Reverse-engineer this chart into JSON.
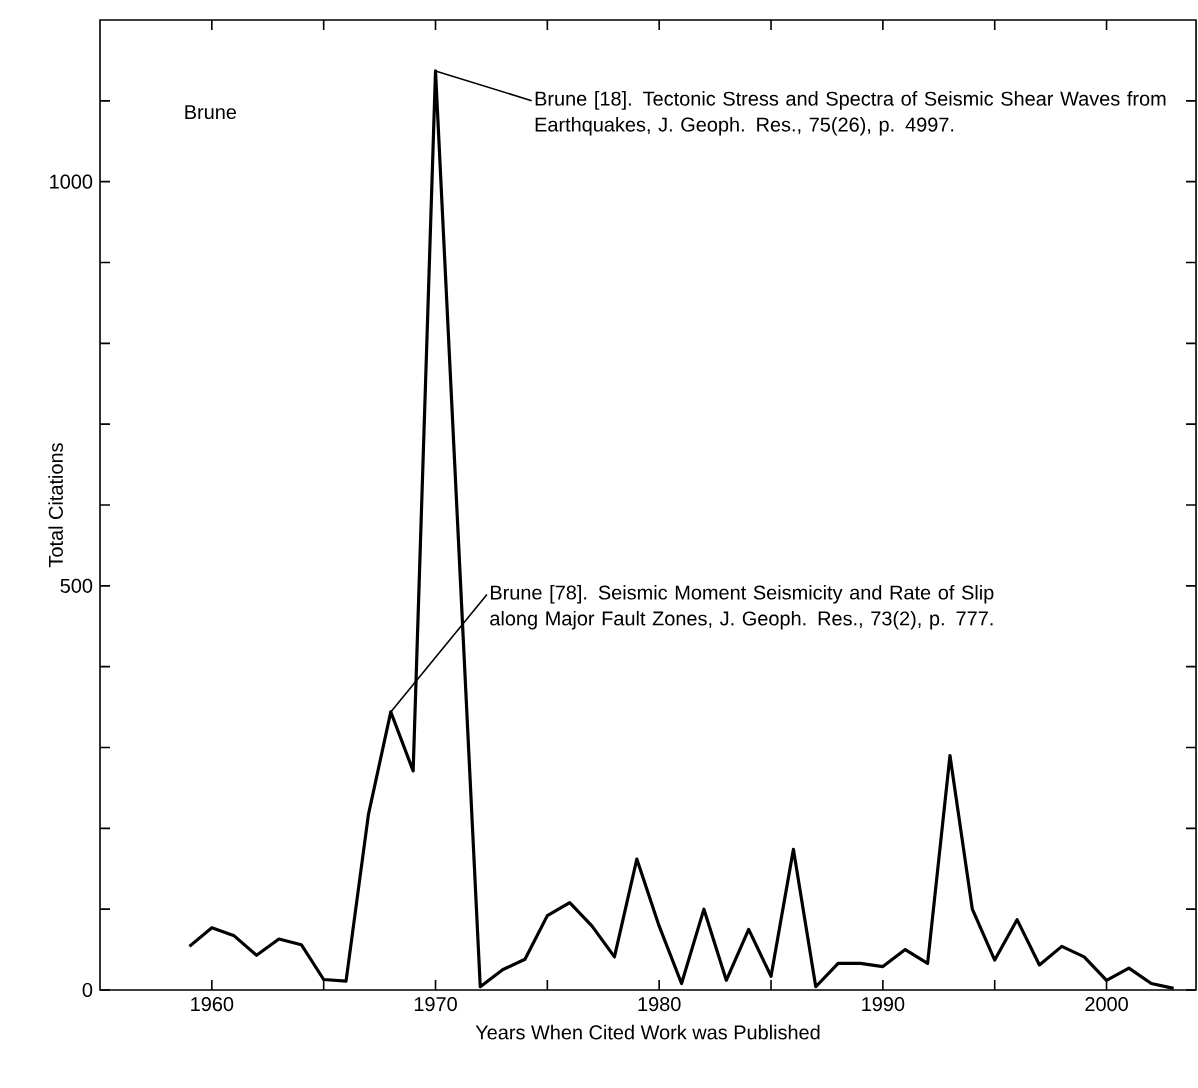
{
  "chart_data": {
    "type": "line",
    "xlabel": "Years When Cited Work was Published",
    "ylabel": "Total Citations",
    "x": [
      1959,
      1960,
      1961,
      1962,
      1963,
      1964,
      1965,
      1966,
      1967,
      1968,
      1969,
      1970,
      1972,
      1973,
      1974,
      1975,
      1976,
      1977,
      1978,
      1979,
      1980,
      1981,
      1982,
      1983,
      1984,
      1985,
      1986,
      1987,
      1988,
      1989,
      1990,
      1991,
      1992,
      1993,
      1994,
      1995,
      1996,
      1997,
      1998,
      1999,
      2000,
      2001,
      2002,
      2003
    ],
    "values": [
      54,
      77,
      67,
      43,
      63,
      56,
      13,
      11,
      217,
      344,
      271,
      1137,
      4,
      25,
      38,
      92,
      108,
      79,
      41,
      162,
      79,
      8,
      100,
      12,
      75,
      17,
      174,
      4,
      33,
      33,
      29,
      50,
      33,
      290,
      100,
      37,
      87,
      31,
      54,
      41,
      12,
      27,
      8,
      2
    ],
    "color": "#000000",
    "marker": "none",
    "line_style": "solid",
    "grid": false,
    "xlim": [
      1955,
      2004
    ],
    "ylim": [
      0,
      1200
    ],
    "xticks": [
      1960,
      {
        "value": 1965,
        "label": null
      },
      1970,
      {
        "value": 1975,
        "label": null
      },
      1980,
      {
        "value": 1985,
        "label": null
      },
      1990,
      {
        "value": 1995,
        "label": null
      },
      2000
    ],
    "yticks": [
      0,
      {
        "value": 100,
        "label": null
      },
      {
        "value": 200,
        "label": null
      },
      {
        "value": 300,
        "label": null
      },
      {
        "value": 400,
        "label": null
      },
      500,
      {
        "value": 600,
        "label": null
      },
      {
        "value": 700,
        "label": null
      },
      {
        "value": 800,
        "label": null
      },
      {
        "value": 900,
        "label": null
      },
      1000,
      {
        "value": 1100,
        "label": null
      }
    ],
    "annotations": [
      "Brune",
      {
        "text": "Brune [18]. Tectonic Stress and Spectra of Seismic Shear Waves from Earthquakes, J. Geoph. Res., 75(26), p. 4997.",
        "x": 1970,
        "y": 1137
      },
      {
        "text": "Brune [78]. Seismic Moment Seismicity and Rate of Slip along Major Fault Zones, J. Geoph. Res., 73(2), p. 777.",
        "x": 1968,
        "y": 344
      }
    ]
  }
}
